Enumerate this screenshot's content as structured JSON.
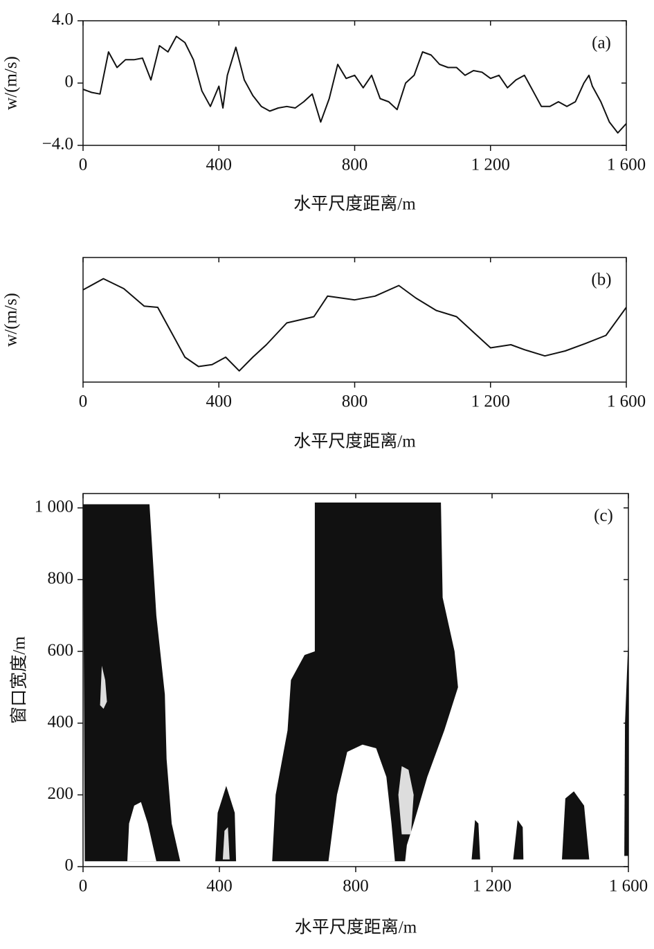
{
  "chart_data": [
    {
      "type": "line",
      "annotation": "(a)",
      "ylabel": "w/(m/s)",
      "xlabel": "水平尺度距离/m",
      "xlim": [
        0,
        1600
      ],
      "xticks": [
        0,
        400,
        800,
        {
          "value": 1200,
          "label": "1 200"
        },
        {
          "value": 1600,
          "label": "1 600"
        }
      ],
      "ylim": [
        -4,
        4
      ],
      "yticks": [
        {
          "value": -4,
          "label": "−4.0"
        },
        0,
        {
          "value": 4,
          "label": "4.0"
        }
      ],
      "color": "#111111",
      "x": [
        0,
        25,
        50,
        75,
        100,
        125,
        150,
        175,
        200,
        225,
        250,
        275,
        300,
        325,
        350,
        375,
        400,
        412,
        425,
        450,
        475,
        500,
        525,
        550,
        575,
        600,
        625,
        650,
        675,
        700,
        725,
        750,
        775,
        800,
        825,
        850,
        875,
        900,
        925,
        950,
        975,
        1000,
        1025,
        1050,
        1075,
        1100,
        1125,
        1150,
        1175,
        1200,
        1225,
        1250,
        1275,
        1300,
        1325,
        1350,
        1375,
        1400,
        1425,
        1450,
        1475,
        1490,
        1500,
        1525,
        1550,
        1575,
        1600
      ],
      "values": [
        -0.4,
        -0.6,
        -0.7,
        2.0,
        1.0,
        1.5,
        1.5,
        1.6,
        0.2,
        2.4,
        2.0,
        3.0,
        2.6,
        1.5,
        -0.5,
        -1.5,
        -0.2,
        -1.6,
        0.5,
        2.3,
        0.2,
        -0.8,
        -1.5,
        -1.8,
        -1.6,
        -1.5,
        -1.6,
        -1.2,
        -0.7,
        -2.5,
        -1.0,
        1.2,
        0.3,
        0.5,
        -0.3,
        0.5,
        -1.0,
        -1.2,
        -1.7,
        0.0,
        0.5,
        2.0,
        1.8,
        1.2,
        1.0,
        1.0,
        0.5,
        0.8,
        0.7,
        0.3,
        0.5,
        -0.3,
        0.2,
        0.5,
        -0.5,
        -1.5,
        -1.5,
        -1.2,
        -1.5,
        -1.2,
        0.0,
        0.5,
        -0.2,
        -1.2,
        -2.5,
        -3.2,
        -2.6
      ]
    },
    {
      "type": "line",
      "annotation": "(b)",
      "ylabel": "w/(m/s)",
      "xlabel": "水平尺度距离/m",
      "xlim": [
        0,
        1600
      ],
      "xticks": [
        0,
        400,
        800,
        {
          "value": 1200,
          "label": "1 200"
        },
        {
          "value": 1600,
          "label": "1 600"
        }
      ],
      "ylim": [
        -1,
        1
      ],
      "color": "#111111",
      "x": [
        0,
        60,
        120,
        180,
        220,
        260,
        300,
        340,
        380,
        420,
        460,
        500,
        540,
        600,
        640,
        680,
        720,
        760,
        800,
        860,
        930,
        980,
        1040,
        1100,
        1160,
        1200,
        1260,
        1300,
        1360,
        1420,
        1480,
        1540,
        1600
      ],
      "values": [
        0.48,
        0.66,
        0.5,
        0.22,
        0.2,
        -0.2,
        -0.6,
        -0.75,
        -0.72,
        -0.6,
        -0.82,
        -0.6,
        -0.4,
        -0.05,
        0.0,
        0.05,
        0.38,
        0.35,
        0.32,
        0.38,
        0.55,
        0.35,
        0.15,
        0.05,
        -0.25,
        -0.45,
        -0.4,
        -0.48,
        -0.58,
        -0.5,
        -0.38,
        -0.25,
        0.2
      ]
    },
    {
      "type": "region",
      "annotation": "(c)",
      "ylabel": "窗口宽度/m",
      "xlabel": "水平尺度距离/m",
      "xlim": [
        0,
        1600
      ],
      "xticks": [
        0,
        400,
        800,
        {
          "value": 1200,
          "label": "1 200"
        },
        {
          "value": 1600,
          "label": "1 600"
        }
      ],
      "ylim": [
        0,
        1040
      ],
      "yticks": [
        0,
        200,
        400,
        600,
        800,
        {
          "value": 1000,
          "label": "1 000"
        }
      ],
      "regions": [
        {
          "color": "#111111",
          "x": [
            5,
            0,
            195,
            215,
            240,
            245,
            260,
            285
          ],
          "y": [
            15,
            1010,
            1010,
            700,
            480,
            300,
            120,
            15
          ]
        },
        {
          "color": "#ffffff",
          "x": [
            130,
            135,
            150,
            170,
            190,
            215
          ],
          "y": [
            15,
            120,
            170,
            180,
            120,
            15
          ]
        },
        {
          "color": "#dddddd",
          "x": [
            50,
            55,
            65,
            70,
            60
          ],
          "y": [
            450,
            560,
            520,
            460,
            440
          ]
        },
        {
          "color": "#111111",
          "x": [
            555,
            565,
            600,
            610,
            650,
            680,
            680,
            1050,
            1055,
            1090,
            1100,
            1060,
            1010,
            970,
            950,
            945
          ],
          "y": [
            15,
            200,
            380,
            520,
            590,
            600,
            1015,
            1015,
            750,
            600,
            500,
            380,
            250,
            120,
            60,
            15
          ]
        },
        {
          "color": "#ffffff",
          "x": [
            720,
            745,
            775,
            820,
            860,
            890,
            905,
            915
          ],
          "y": [
            15,
            200,
            320,
            340,
            330,
            250,
            120,
            15
          ]
        },
        {
          "color": "#dddddd",
          "x": [
            935,
            925,
            935,
            955,
            970,
            962
          ],
          "y": [
            90,
            200,
            280,
            270,
            200,
            90
          ]
        },
        {
          "color": "#111111",
          "x": [
            388,
            395,
            420,
            445,
            449
          ],
          "y": [
            15,
            150,
            225,
            150,
            15
          ]
        },
        {
          "color": "#dddddd",
          "x": [
            410,
            415,
            425,
            430
          ],
          "y": [
            20,
            100,
            110,
            20
          ]
        },
        {
          "color": "#111111",
          "x": [
            1405,
            1415,
            1440,
            1470,
            1485
          ],
          "y": [
            20,
            190,
            210,
            170,
            20
          ]
        },
        {
          "color": "#111111",
          "x": [
            1588,
            1590,
            1600,
            1600
          ],
          "y": [
            30,
            400,
            640,
            30
          ]
        },
        {
          "color": "#111111",
          "x": [
            1140,
            1150,
            1160,
            1165
          ],
          "y": [
            20,
            130,
            120,
            20
          ]
        },
        {
          "color": "#111111",
          "x": [
            1262,
            1275,
            1290,
            1292
          ],
          "y": [
            20,
            130,
            110,
            20
          ]
        }
      ]
    }
  ]
}
